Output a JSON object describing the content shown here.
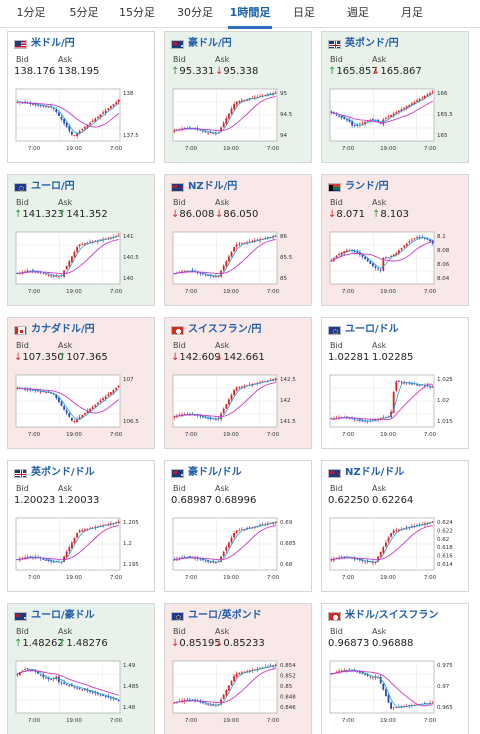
{
  "tabs": [
    "1分足",
    "5分足",
    "15分足",
    "30分足",
    "1時間足",
    "日足",
    "週足",
    "月足"
  ],
  "active_tab": "1時間足",
  "labels": {
    "bid": "Bid",
    "ask": "Ask"
  },
  "colors": {
    "up_bg": "#e9f2ea",
    "down_bg": "#f8e8e8",
    "accent": "#2f6fbf",
    "up_arrow": "#2e9a3a",
    "down_arrow": "#d22a2a",
    "candle_up": "#e02020",
    "candle_down": "#2a45b8",
    "ma_short": "#1aa6d9",
    "ma_long": "#c93cc9"
  },
  "cards": [
    {
      "pair": "米ドル/円",
      "flag": "us-flag-icon",
      "trend": "neutral",
      "bid": "138.176",
      "ask": "138.195",
      "bid_dir": "",
      "ask_dir": "",
      "yticks": [
        "138",
        "137.5"
      ],
      "xticks": [
        "7:00",
        "19:00",
        "7:00"
      ],
      "shape": "vdip"
    },
    {
      "pair": "豪ドル/円",
      "flag": "au-flag-icon",
      "trend": "up",
      "bid": "95.331",
      "ask": "95.338",
      "bid_dir": "up",
      "ask_dir": "down",
      "yticks": [
        "95",
        "94.5",
        "94"
      ],
      "xticks": [
        "7:00",
        "19:00",
        "7:00"
      ],
      "shape": "rise"
    },
    {
      "pair": "英ポンド/円",
      "flag": "uk-flag-icon",
      "trend": "up",
      "bid": "165.857",
      "ask": "165.867",
      "bid_dir": "up",
      "ask_dir": "down",
      "yticks": [
        "166",
        "165.5",
        "165"
      ],
      "xticks": [
        "7:00",
        "19:00",
        "7:00"
      ],
      "shape": "rise2"
    },
    {
      "pair": "ユーロ/円",
      "flag": "eu-flag-icon",
      "trend": "up",
      "bid": "141.323",
      "ask": "141.352",
      "bid_dir": "up",
      "ask_dir": "up",
      "yticks": [
        "141",
        "140.5",
        "140"
      ],
      "xticks": [
        "7:00",
        "19:00",
        "7:00"
      ],
      "shape": "rise"
    },
    {
      "pair": "NZドル/円",
      "flag": "nz-flag-icon",
      "trend": "down",
      "bid": "86.008",
      "ask": "86.050",
      "bid_dir": "down",
      "ask_dir": "down",
      "yticks": [
        "86",
        "85.5",
        "85"
      ],
      "xticks": [
        "7:00",
        "19:00",
        "7:00"
      ],
      "shape": "rise"
    },
    {
      "pair": "ランド/円",
      "flag": "za-flag-icon",
      "trend": "down",
      "bid": "8.071",
      "ask": "8.103",
      "bid_dir": "down",
      "ask_dir": "up",
      "yticks": [
        "8.1",
        "8.08",
        "8.06",
        "8.04"
      ],
      "xticks": [
        "7:00",
        "19:00",
        "7:00"
      ],
      "shape": "noisy"
    },
    {
      "pair": "カナダドル/円",
      "flag": "ca-flag-icon",
      "trend": "down",
      "bid": "107.350",
      "ask": "107.365",
      "bid_dir": "down",
      "ask_dir": "up",
      "yticks": [
        "107",
        "106.5"
      ],
      "xticks": [
        "7:00",
        "19:00",
        "7:00"
      ],
      "shape": "vdip"
    },
    {
      "pair": "スイスフラン/円",
      "flag": "ch-flag-icon",
      "trend": "down",
      "bid": "142.609",
      "ask": "142.661",
      "bid_dir": "down",
      "ask_dir": "down",
      "yticks": [
        "142.5",
        "142",
        "141.5"
      ],
      "xticks": [
        "7:00",
        "19:00",
        "7:00"
      ],
      "shape": "rise"
    },
    {
      "pair": "ユーロ/ドル",
      "flag": "eu-flag-icon",
      "trend": "neutral",
      "bid": "1.02281",
      "ask": "1.02285",
      "bid_dir": "",
      "ask_dir": "",
      "yticks": [
        "1.025",
        "1.02",
        "1.015"
      ],
      "xticks": [
        "7:00",
        "19:00",
        "7:00"
      ],
      "shape": "jump"
    },
    {
      "pair": "英ポンド/ドル",
      "flag": "uk-flag-icon",
      "trend": "neutral",
      "bid": "1.20023",
      "ask": "1.20033",
      "bid_dir": "",
      "ask_dir": "",
      "yticks": [
        "1.205",
        "1.2",
        "1.195"
      ],
      "xticks": [
        "7:00",
        "19:00",
        "7:00"
      ],
      "shape": "rise"
    },
    {
      "pair": "豪ドル/ドル",
      "flag": "au-flag-icon",
      "trend": "neutral",
      "bid": "0.68987",
      "ask": "0.68996",
      "bid_dir": "",
      "ask_dir": "",
      "yticks": [
        "0.69",
        "0.685",
        "0.68"
      ],
      "xticks": [
        "7:00",
        "19:00",
        "7:00"
      ],
      "shape": "rise"
    },
    {
      "pair": "NZドル/ドル",
      "flag": "nz-flag-icon",
      "trend": "neutral",
      "bid": "0.62250",
      "ask": "0.62264",
      "bid_dir": "",
      "ask_dir": "",
      "yticks": [
        "0.624",
        "0.622",
        "0.62",
        "0.618",
        "0.616",
        "0.614"
      ],
      "xticks": [
        "7:00",
        "19:00",
        "7:00"
      ],
      "shape": "rise"
    },
    {
      "pair": "ユーロ/豪ドル",
      "flag": "au-flag-icon",
      "trend": "up",
      "bid": "1.48262",
      "ask": "1.48276",
      "bid_dir": "up",
      "ask_dir": "up",
      "yticks": [
        "1.49",
        "1.485",
        "1.48"
      ],
      "xticks": [
        "7:00",
        "19:00",
        "7:00"
      ],
      "shape": "fall"
    },
    {
      "pair": "ユーロ/英ポンド",
      "flag": "eu-flag-icon",
      "trend": "down",
      "bid": "0.85195",
      "ask": "0.85233",
      "bid_dir": "down",
      "ask_dir": "down",
      "yticks": [
        "0.854",
        "0.852",
        "0.85",
        "0.848",
        "0.846"
      ],
      "xticks": [
        "7:00",
        "19:00",
        "7:00"
      ],
      "shape": "rise"
    },
    {
      "pair": "米ドル/スイスフラン",
      "flag": "ch-flag-icon",
      "trend": "neutral",
      "bid": "0.96873",
      "ask": "0.96888",
      "bid_dir": "",
      "ask_dir": "",
      "yticks": [
        "0.975",
        "0.97",
        "0.965"
      ],
      "xticks": [
        "7:00",
        "19:00",
        "7:00"
      ],
      "shape": "drop"
    }
  ]
}
